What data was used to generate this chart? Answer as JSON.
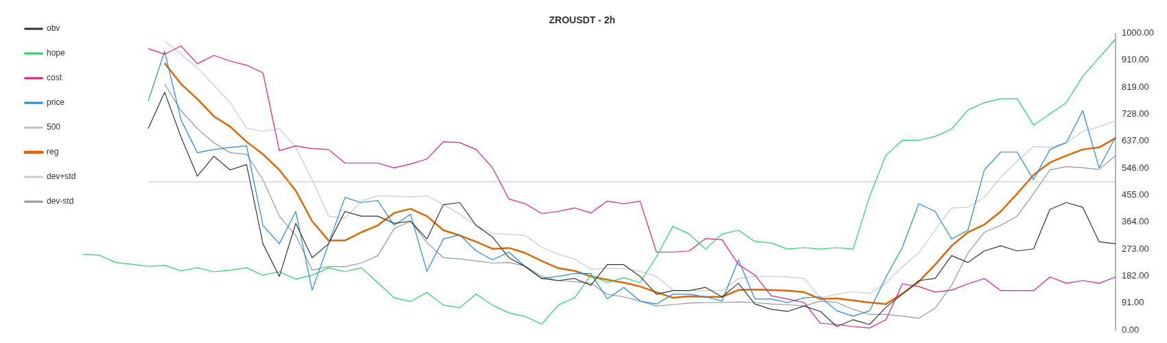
{
  "chart_data": {
    "type": "line",
    "title": "ZROUSDT - 2h",
    "categories": [
      null,
      null,
      null,
      null,
      null,
      null,
      null,
      null,
      null,
      null,
      null,
      null,
      null,
      null,
      null,
      null,
      null,
      null,
      null,
      null,
      null,
      null,
      null,
      null,
      null,
      null,
      null,
      null,
      null,
      null,
      null,
      null,
      null,
      null,
      null,
      null,
      null,
      null,
      null,
      null,
      null,
      null,
      null,
      null,
      null,
      null,
      null,
      null,
      null,
      null,
      null,
      null,
      null,
      null,
      null,
      null,
      null,
      null,
      null,
      null,
      null,
      null,
      null,
      null
    ],
    "ylim": [
      0,
      1000
    ],
    "yticks": [
      {
        "value": 0,
        "label": "0.00"
      },
      {
        "value": 91,
        "label": "91.00"
      },
      {
        "value": 182,
        "label": "182.00"
      },
      {
        "value": 273,
        "label": "273.00"
      },
      {
        "value": 364,
        "label": "364.00"
      },
      {
        "value": 455,
        "label": "455.00"
      },
      {
        "value": 546,
        "label": "546.00"
      },
      {
        "value": 637,
        "label": "637.00"
      },
      {
        "value": 728,
        "label": "728.00"
      },
      {
        "value": 819,
        "label": "819.00"
      },
      {
        "value": 910,
        "label": "910.00"
      },
      {
        "value": 1000,
        "label": "1000.00"
      }
    ],
    "tick_labels": "y",
    "grid": false,
    "legend": "top left",
    "marker": "none",
    "series": [
      {
        "name": "obv",
        "color": "#333333",
        "values": [
          null,
          null,
          null,
          null,
          679,
          802,
          651,
          519,
          586,
          540,
          558,
          291,
          181,
          360,
          244,
          291,
          400,
          384,
          384,
          360,
          367,
          307,
          423,
          430,
          353,
          314,
          244,
          214,
          174,
          167,
          174,
          151,
          221,
          221,
          181,
          121,
          133,
          133,
          144,
          112,
          158,
          88,
          70,
          63,
          81,
          63,
          12,
          35,
          19,
          77,
          121,
          167,
          174,
          251,
          228,
          267,
          284,
          267,
          274,
          407,
          430,
          414,
          298,
          291
        ]
      },
      {
        "name": "hope",
        "color": "#1ed760",
        "values": [
          255,
          253,
          228,
          222,
          215,
          218,
          200,
          210,
          197,
          202,
          210,
          185,
          197,
          172,
          185,
          210,
          197,
          210,
          160,
          109,
          96,
          127,
          84,
          76,
          122,
          84,
          58,
          46,
          20,
          84,
          109,
          185,
          160,
          177,
          160,
          248,
          350,
          324,
          273,
          324,
          337,
          299,
          294,
          273,
          278,
          273,
          278,
          273,
          451,
          590,
          640,
          640,
          653,
          678,
          742,
          767,
          780,
          780,
          691,
          729,
          767,
          856,
          919,
          981
        ]
      },
      {
        "name": "cost",
        "color": "#e6197f",
        "values": [
          null,
          null,
          null,
          null,
          949,
          930,
          958,
          898,
          926,
          907,
          893,
          867,
          605,
          621,
          612,
          609,
          563,
          563,
          563,
          547,
          560,
          577,
          635,
          632,
          609,
          547,
          442,
          426,
          393,
          400,
          412,
          395,
          435,
          426,
          435,
          263,
          263,
          267,
          309,
          305,
          221,
          186,
          116,
          105,
          93,
          23,
          19,
          12,
          7,
          35,
          156,
          147,
          128,
          135,
          156,
          174,
          133,
          133,
          133,
          179,
          158,
          167,
          158,
          179
        ]
      },
      {
        "name": "price",
        "color": "#1e88e5",
        "values": [
          null,
          null,
          null,
          null,
          772,
          940,
          709,
          598,
          609,
          616,
          621,
          353,
          291,
          400,
          135,
          291,
          447,
          430,
          437,
          353,
          391,
          198,
          307,
          321,
          267,
          237,
          263,
          214,
          174,
          181,
          191,
          191,
          105,
          144,
          98,
          88,
          121,
          121,
          112,
          98,
          237,
          105,
          105,
          93,
          109,
          112,
          65,
          47,
          65,
          179,
          279,
          426,
          400,
          307,
          337,
          540,
          600,
          600,
          507,
          609,
          632,
          740,
          547,
          651
        ]
      },
      {
        "name": "500",
        "color": "#c0c0c0",
        "values": [
          null,
          null,
          null,
          null,
          500,
          500,
          500,
          500,
          500,
          500,
          500,
          500,
          500,
          500,
          500,
          500,
          500,
          500,
          500,
          500,
          500,
          500,
          500,
          500,
          500,
          500,
          500,
          500,
          500,
          500,
          500,
          500,
          500,
          500,
          500,
          500,
          500,
          500,
          500,
          500,
          500,
          500,
          500,
          500,
          500,
          500,
          500,
          500,
          500,
          500,
          500,
          500,
          500,
          500,
          500,
          500,
          500,
          500,
          500,
          500,
          500,
          500,
          500,
          500
        ]
      },
      {
        "name": "reg",
        "color": "#e06500",
        "values": [
          null,
          null,
          null,
          null,
          null,
          900,
          830,
          779,
          721,
          686,
          635,
          593,
          540,
          470,
          367,
          302,
          302,
          330,
          353,
          395,
          409,
          384,
          337,
          319,
          298,
          274,
          277,
          260,
          233,
          209,
          200,
          181,
          170,
          160,
          147,
          128,
          109,
          114,
          112,
          112,
          135,
          137,
          135,
          133,
          128,
          105,
          107,
          100,
          93,
          88,
          123,
          163,
          221,
          284,
          330,
          356,
          400,
          460,
          523,
          565,
          588,
          609,
          616,
          647
        ]
      },
      {
        "name": "dev+std",
        "color": "#c5cbd0",
        "values": [
          null,
          null,
          null,
          null,
          null,
          975,
          930,
          884,
          826,
          767,
          681,
          670,
          679,
          616,
          507,
          384,
          377,
          435,
          453,
          451,
          449,
          453,
          423,
          391,
          353,
          326,
          323,
          319,
          279,
          256,
          240,
          205,
          209,
          207,
          198,
          181,
          135,
          133,
          133,
          133,
          174,
          181,
          181,
          179,
          174,
          109,
          121,
          130,
          123,
          158,
          214,
          260,
          337,
          412,
          414,
          447,
          516,
          570,
          619,
          616,
          632,
          670,
          686,
          705
        ]
      },
      {
        "name": "dev-std",
        "color": "#8a98a3",
        "values": [
          null,
          null,
          null,
          null,
          null,
          830,
          740,
          679,
          632,
          598,
          593,
          507,
          384,
          319,
          202,
          214,
          214,
          226,
          251,
          342,
          367,
          295,
          244,
          240,
          233,
          226,
          228,
          216,
          181,
          167,
          163,
          158,
          121,
          112,
          98,
          81,
          86,
          91,
          93,
          93,
          95,
          93,
          88,
          86,
          81,
          98,
          93,
          70,
          53,
          53,
          47,
          40,
          74,
          151,
          260,
          330,
          353,
          384,
          460,
          540,
          551,
          547,
          542,
          588
        ]
      }
    ]
  }
}
